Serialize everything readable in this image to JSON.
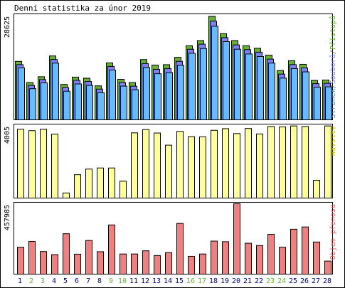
{
  "chart_data": [
    {
      "type": "bar",
      "title": "Denní statistika za únor 2019",
      "ymax_label": "28625",
      "side_label_parts": [
        {
          "text": "Stránek",
          "color": "#4a90d9"
        },
        {
          "text": "/",
          "color": "#666666"
        },
        {
          "text": "Souborů",
          "color": "#8080ff"
        },
        {
          "text": "/",
          "color": "#666666"
        },
        {
          "text": "Přístupů",
          "color": "#66b032"
        }
      ],
      "categories": [
        "1",
        "2",
        "3",
        "4",
        "5",
        "6",
        "7",
        "8",
        "9",
        "10",
        "11",
        "12",
        "13",
        "14",
        "15",
        "16",
        "17",
        "18",
        "19",
        "20",
        "21",
        "22",
        "23",
        "24",
        "25",
        "26",
        "27",
        "28"
      ],
      "ylim": [
        0,
        28625
      ],
      "series": [
        {
          "name": "Přístupů",
          "color": "#66b032",
          "values": [
            16000,
            10200,
            11800,
            17500,
            9700,
            11700,
            11400,
            9300,
            15600,
            11100,
            10200,
            16500,
            15000,
            15100,
            17100,
            20300,
            21700,
            28325,
            23600,
            21700,
            20300,
            19600,
            17700,
            13500,
            16200,
            15200,
            10800,
            10900
          ]
        },
        {
          "name": "Souborů",
          "color": "#8080ff",
          "values": [
            15700,
            10000,
            11600,
            17100,
            9400,
            11400,
            11100,
            9000,
            15200,
            10800,
            9800,
            16000,
            14400,
            14600,
            16600,
            19900,
            21300,
            27600,
            23100,
            21100,
            19800,
            19100,
            17200,
            13100,
            15700,
            14800,
            10500,
            10600
          ]
        },
        {
          "name": "Stránek",
          "color": "#66bbff",
          "values": [
            15400,
            9700,
            11300,
            16700,
            9000,
            11000,
            10600,
            8600,
            14800,
            10400,
            9400,
            15500,
            13800,
            14100,
            16100,
            19400,
            20700,
            26800,
            22600,
            20500,
            19200,
            18500,
            16700,
            12600,
            15200,
            14300,
            10100,
            10200
          ]
        }
      ]
    },
    {
      "type": "bar",
      "ymax_label": "4005",
      "side_label_parts": [
        {
          "text": "Návštěv",
          "color": "#c8c800"
        }
      ],
      "categories": [
        "1",
        "2",
        "3",
        "4",
        "5",
        "6",
        "7",
        "8",
        "9",
        "10",
        "11",
        "12",
        "13",
        "14",
        "15",
        "16",
        "17",
        "18",
        "19",
        "20",
        "21",
        "22",
        "23",
        "24",
        "25",
        "26",
        "27",
        "28"
      ],
      "ylim": [
        0,
        4005
      ],
      "series": [
        {
          "name": "Návštěv",
          "color": "#ffff99",
          "values": [
            3800,
            3720,
            3800,
            3530,
            280,
            1290,
            1600,
            1660,
            1660,
            930,
            3600,
            3780,
            3590,
            2920,
            3680,
            3390,
            3380,
            3740,
            3830,
            3560,
            3840,
            3540,
            3950,
            3930,
            3980,
            3950,
            980,
            3980
          ]
        }
      ]
    },
    {
      "type": "bar",
      "ymax_label": "457985",
      "side_label_parts": [
        {
          "text": "Objem přenosu",
          "color": "#e06060"
        }
      ],
      "categories": [
        "1",
        "2",
        "3",
        "4",
        "5",
        "6",
        "7",
        "8",
        "9",
        "10",
        "11",
        "12",
        "13",
        "14",
        "15",
        "16",
        "17",
        "18",
        "19",
        "20",
        "21",
        "22",
        "23",
        "24",
        "25",
        "26",
        "27",
        "28"
      ],
      "ylim": [
        0,
        457985
      ],
      "series": [
        {
          "name": "Objem přenosu",
          "color": "#f08080",
          "values": [
            175000,
            213000,
            147000,
            127000,
            263000,
            130000,
            219000,
            146000,
            320000,
            131000,
            131000,
            152000,
            121000,
            140000,
            330000,
            116000,
            131000,
            215000,
            211000,
            457985,
            201000,
            186000,
            259000,
            175000,
            292000,
            307000,
            209000,
            85000
          ]
        }
      ]
    }
  ],
  "x_axis": {
    "labels": [
      "1",
      "2",
      "3",
      "4",
      "5",
      "6",
      "7",
      "8",
      "9",
      "10",
      "11",
      "12",
      "13",
      "14",
      "15",
      "16",
      "17",
      "18",
      "19",
      "20",
      "21",
      "22",
      "23",
      "24",
      "25",
      "26",
      "27",
      "28"
    ],
    "weekend": [
      false,
      true,
      true,
      false,
      false,
      false,
      false,
      false,
      true,
      true,
      false,
      false,
      false,
      false,
      false,
      true,
      true,
      false,
      false,
      false,
      false,
      false,
      true,
      true,
      false,
      false,
      false,
      false
    ],
    "weekday_color": "#000080",
    "weekend_color": "#66b032"
  }
}
